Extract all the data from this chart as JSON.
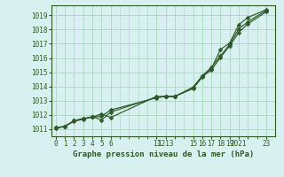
{
  "title": "Graphe pression niveau de la mer (hPa)",
  "bg_color": "#d8f0f0",
  "grid_color": "#b0d8c8",
  "line_color": "#2d5a27",
  "marker_color": "#2d5a27",
  "ylim": [
    1010.5,
    1019.7
  ],
  "yticks": [
    1011,
    1012,
    1013,
    1014,
    1015,
    1016,
    1017,
    1018,
    1019
  ],
  "xlim": [
    -0.5,
    24.0
  ],
  "line1_x": [
    0,
    1,
    2,
    3,
    4,
    5,
    6,
    11,
    12,
    13,
    15,
    16,
    17,
    18,
    19,
    20,
    21,
    23
  ],
  "line1_y": [
    1011.05,
    1011.2,
    1011.55,
    1011.7,
    1011.85,
    1011.9,
    1012.35,
    1013.2,
    1013.3,
    1013.3,
    1013.85,
    1014.65,
    1015.25,
    1016.6,
    1017.05,
    1018.35,
    1018.85,
    1019.4
  ],
  "line2_x": [
    0,
    1,
    2,
    3,
    4,
    5,
    6,
    11,
    12,
    13,
    15,
    16,
    17,
    18,
    19,
    20,
    21,
    23
  ],
  "line2_y": [
    1011.1,
    1011.2,
    1011.6,
    1011.72,
    1011.88,
    1011.65,
    1012.2,
    1013.25,
    1013.3,
    1013.3,
    1013.9,
    1014.7,
    1015.15,
    1016.05,
    1016.85,
    1017.8,
    1018.4,
    1019.25
  ],
  "line3_x": [
    0,
    1,
    2,
    3,
    4,
    5,
    6,
    11,
    12,
    13,
    15,
    16,
    17,
    18,
    19,
    20,
    21,
    23
  ],
  "line3_y": [
    1011.1,
    1011.2,
    1011.6,
    1011.75,
    1011.85,
    1012.08,
    1011.82,
    1013.3,
    1013.3,
    1013.3,
    1013.95,
    1014.75,
    1015.35,
    1016.15,
    1016.95,
    1018.05,
    1018.55,
    1019.35
  ],
  "xtick_positions": [
    0,
    1,
    2,
    3,
    4,
    5,
    6,
    11,
    12,
    13,
    15,
    16,
    17,
    18,
    19,
    20,
    21,
    23
  ],
  "xtick_labels": [
    "0",
    "1",
    "2",
    "3",
    "4",
    "5",
    "6",
    "11",
    "1213",
    "",
    "15",
    "16",
    "17",
    "18",
    "19",
    "2021",
    "",
    "23"
  ]
}
